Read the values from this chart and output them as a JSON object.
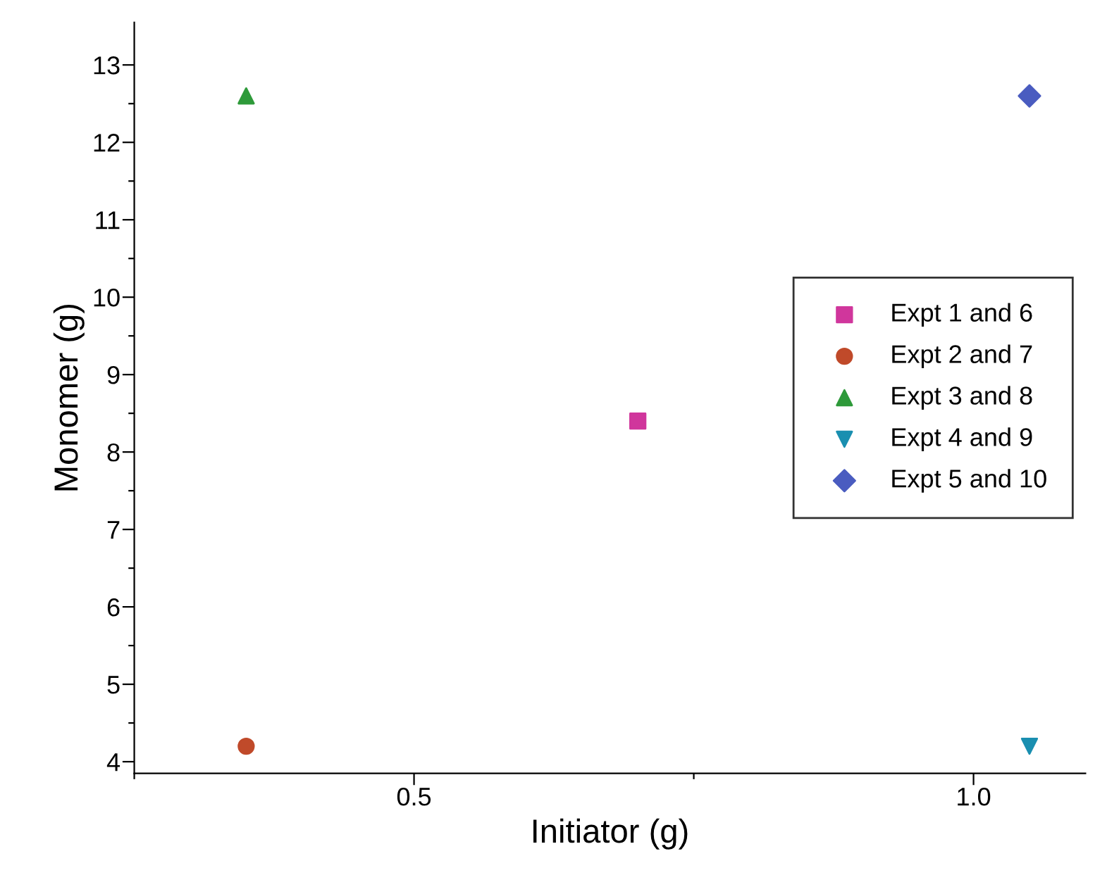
{
  "chart_data": {
    "type": "scatter",
    "xlabel": "Initiator (g)",
    "ylabel": "Monomer (g)",
    "xlim": [
      0.25,
      1.1
    ],
    "ylim": [
      3.85,
      13.55
    ],
    "xticks": [
      {
        "value": 0.25,
        "label": null
      },
      0.5,
      {
        "value": 0.75,
        "label": null
      },
      {
        "value": 1.0,
        "label": "1.0"
      }
    ],
    "yticks": [
      4,
      {
        "value": 4.5,
        "label": null
      },
      5,
      {
        "value": 5.5,
        "label": null
      },
      6,
      {
        "value": 6.5,
        "label": null
      },
      7,
      {
        "value": 7.5,
        "label": null
      },
      8,
      {
        "value": 8.5,
        "label": null
      },
      9,
      {
        "value": 9.5,
        "label": null
      },
      10,
      {
        "value": 10.5,
        "label": null
      },
      11,
      {
        "value": 11.5,
        "label": null
      },
      12,
      {
        "value": 12.5,
        "label": null
      },
      13
    ],
    "grid": false,
    "legend": "right",
    "series": [
      {
        "name": "Expt 1 and 6",
        "color": "#d0369c",
        "marker": "square",
        "x": [
          0.7
        ],
        "values": [
          8.4
        ]
      },
      {
        "name": "Expt 2 and 7",
        "color": "#c04a2a",
        "marker": "circle",
        "x": [
          0.35
        ],
        "values": [
          4.2
        ]
      },
      {
        "name": "Expt 3 and 8",
        "color": "#2e9a3a",
        "marker": "triangle",
        "x": [
          0.35
        ],
        "values": [
          12.6
        ]
      },
      {
        "name": "Expt 4 and 9",
        "color": "#1a8fb0",
        "marker": "triangle_down",
        "x": [
          1.05
        ],
        "values": [
          4.2
        ]
      },
      {
        "name": "Expt 5 and 10",
        "color": "#4a5cc0",
        "marker": "diamond",
        "x": [
          1.05
        ],
        "values": [
          12.6
        ]
      }
    ]
  }
}
